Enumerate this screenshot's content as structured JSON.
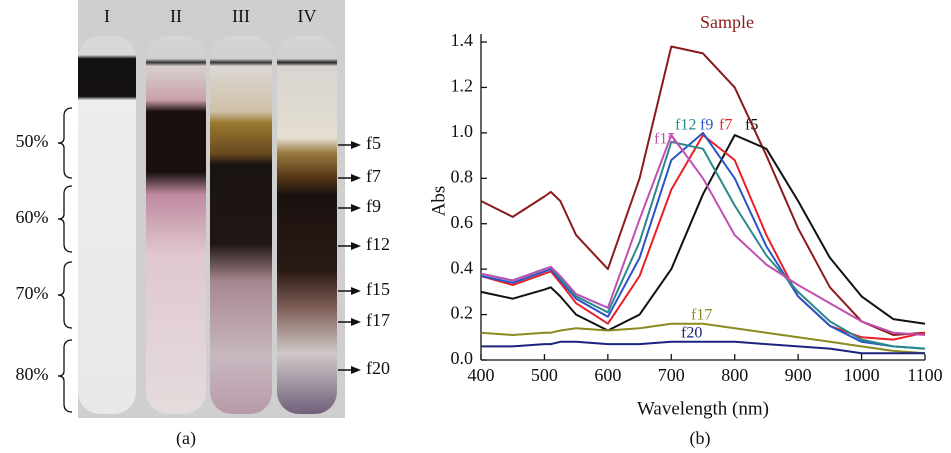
{
  "panel_a": {
    "tubes": [
      "I",
      "II",
      "III",
      "IV"
    ],
    "layers": [
      {
        "label": "50%"
      },
      {
        "label": "60%"
      },
      {
        "label": "70%"
      },
      {
        "label": "80%"
      }
    ],
    "fractions": [
      "f5",
      "f7",
      "f9",
      "f12",
      "f15",
      "f17",
      "f20"
    ],
    "caption": "(a)"
  },
  "chart_data": {
    "type": "line",
    "caption": "(b)",
    "x_label": "Wavelength (nm)",
    "y_label": "Abs",
    "x": [
      400,
      450,
      500,
      510,
      525,
      550,
      600,
      650,
      700,
      750,
      800,
      850,
      900,
      950,
      1000,
      1050,
      1100
    ],
    "xlim": [
      400,
      1100
    ],
    "xticks": [
      400,
      500,
      600,
      700,
      800,
      900,
      1000,
      1100
    ],
    "ylim": [
      0,
      1.4
    ],
    "yticks": [
      {
        "value": 0,
        "label": "0.0"
      },
      0.2,
      0.4,
      0.6,
      0.8,
      {
        "value": 1,
        "label": "1.0"
      },
      1.2,
      1.4
    ],
    "series": [
      {
        "name": "Sample",
        "color": "#8b1a1a",
        "values": [
          0.7,
          0.63,
          0.72,
          0.74,
          0.7,
          0.55,
          0.4,
          0.8,
          1.38,
          1.35,
          1.2,
          0.9,
          0.58,
          0.32,
          0.17,
          0.11,
          0.12
        ]
      },
      {
        "name": "f5",
        "color": "#111111",
        "values": [
          0.3,
          0.27,
          0.31,
          0.32,
          0.28,
          0.2,
          0.13,
          0.2,
          0.4,
          0.73,
          0.99,
          0.93,
          0.7,
          0.45,
          0.28,
          0.18,
          0.16
        ]
      },
      {
        "name": "f7",
        "color": "#e8202a",
        "values": [
          0.37,
          0.33,
          0.38,
          0.39,
          0.34,
          0.25,
          0.16,
          0.37,
          0.75,
          0.99,
          0.88,
          0.55,
          0.28,
          0.15,
          0.1,
          0.09,
          0.12
        ]
      },
      {
        "name": "f9",
        "color": "#2a55c8",
        "values": [
          0.37,
          0.34,
          0.39,
          0.4,
          0.35,
          0.27,
          0.19,
          0.45,
          0.88,
          1.0,
          0.8,
          0.5,
          0.28,
          0.15,
          0.08,
          0.06,
          0.05
        ]
      },
      {
        "name": "f12",
        "color": "#2a8a8a",
        "values": [
          0.38,
          0.35,
          0.4,
          0.41,
          0.36,
          0.28,
          0.21,
          0.52,
          0.96,
          0.93,
          0.68,
          0.46,
          0.3,
          0.17,
          0.09,
          0.06,
          0.05
        ]
      },
      {
        "name": "f15",
        "color": "#c050b0",
        "values": [
          0.38,
          0.35,
          0.4,
          0.41,
          0.37,
          0.29,
          0.23,
          0.62,
          0.99,
          0.8,
          0.55,
          0.42,
          0.33,
          0.25,
          0.17,
          0.12,
          0.11
        ]
      },
      {
        "name": "f17",
        "color": "#8a8a20",
        "values": [
          0.12,
          0.11,
          0.12,
          0.12,
          0.13,
          0.14,
          0.13,
          0.14,
          0.16,
          0.16,
          0.14,
          0.12,
          0.1,
          0.08,
          0.06,
          0.04,
          0.03
        ]
      },
      {
        "name": "f20",
        "color": "#1a237e",
        "values": [
          0.06,
          0.06,
          0.07,
          0.07,
          0.08,
          0.08,
          0.07,
          0.07,
          0.08,
          0.08,
          0.08,
          0.07,
          0.06,
          0.05,
          0.03,
          0.03,
          0.03
        ]
      }
    ]
  }
}
